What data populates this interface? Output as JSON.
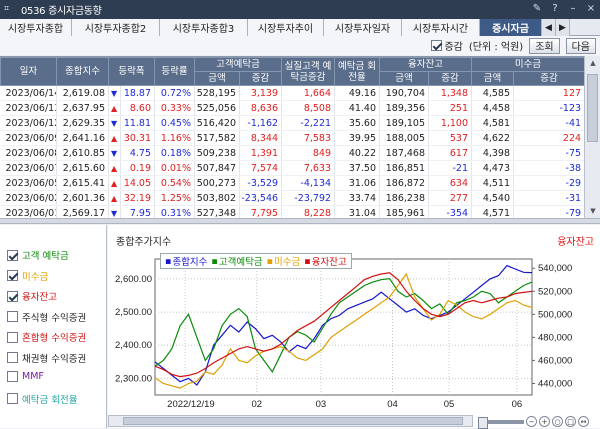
{
  "window": {
    "title": "0536 증시자금동향"
  },
  "tabs": [
    "시장투자종합",
    "시장투자종합2",
    "시장투자종합3",
    "시장투자추이",
    "시장투자일자",
    "시장투자시간",
    "증시자금"
  ],
  "active_tab": "증시자금",
  "options": {
    "check_label": "증감",
    "check_on": true,
    "unit": "(단위 : 억원)",
    "query_btn": "조회",
    "next_btn": "다음"
  },
  "table": {
    "top_headers": [
      "일자",
      "종합지수",
      "등락폭",
      "등락률",
      "고객예탁금",
      "실질고객 예탁금증감",
      "예탁금 회전율",
      "융자잔고",
      "미수금"
    ],
    "sub_headers": [
      "금액",
      "증감",
      "금액",
      "증감",
      "금액",
      "증감"
    ],
    "rows": [
      [
        "2023/06/14",
        "2,619.08",
        "dn",
        "18.87",
        "0.72%",
        "528,195",
        "3,139",
        "1,664",
        "49.16",
        "190,704",
        "1,348",
        "4,585",
        "127"
      ],
      [
        "2023/06/13",
        "2,637.95",
        "up",
        "8.60",
        "0.33%",
        "525,056",
        "8,636",
        "8,508",
        "41.40",
        "189,356",
        "251",
        "4,458",
        "-123"
      ],
      [
        "2023/06/12",
        "2,629.35",
        "dn",
        "11.81",
        "0.45%",
        "516,420",
        "-1,162",
        "-2,221",
        "35.60",
        "189,105",
        "1,100",
        "4,581",
        "-41"
      ],
      [
        "2023/06/09",
        "2,641.16",
        "up",
        "30.31",
        "1.16%",
        "517,582",
        "8,344",
        "7,583",
        "39.95",
        "188,005",
        "537",
        "4,622",
        "224"
      ],
      [
        "2023/06/08",
        "2,610.85",
        "dn",
        "4.75",
        "0.18%",
        "509,238",
        "1,391",
        "849",
        "40.22",
        "187,468",
        "617",
        "4,398",
        "-75"
      ],
      [
        "2023/06/07",
        "2,615.60",
        "up",
        "0.19",
        "0.01%",
        "507,847",
        "7,574",
        "7,633",
        "37.50",
        "186,851",
        "-21",
        "4,473",
        "-38"
      ],
      [
        "2023/06/05",
        "2,615.41",
        "up",
        "14.05",
        "0.54%",
        "500,273",
        "-3,529",
        "-4,134",
        "31.06",
        "186,872",
        "634",
        "4,511",
        "-29"
      ],
      [
        "2023/06/02",
        "2,601.36",
        "up",
        "32.19",
        "1.25%",
        "503,802",
        "-23,546",
        "-23,792",
        "33.74",
        "186,238",
        "277",
        "4,540",
        "-31"
      ],
      [
        "2023/06/01",
        "2,569.17",
        "dn",
        "7.95",
        "0.31%",
        "527,348",
        "7,795",
        "8,228",
        "31.04",
        "185,961",
        "-354",
        "4,571",
        "-79"
      ]
    ]
  },
  "legend_panel": [
    {
      "label": "고객 예탁금",
      "checked": true,
      "color": "#0a8a0a"
    },
    {
      "label": "미수금",
      "checked": true,
      "color": "#e0a000"
    },
    {
      "label": "융자잔고",
      "checked": true,
      "color": "#d01010"
    },
    {
      "label": "주식형 수익증권",
      "checked": false,
      "color": "#222222"
    },
    {
      "label": "혼합형 수익증권",
      "checked": false,
      "color": "#d01010"
    },
    {
      "label": "채권형 수익증권",
      "checked": false,
      "color": "#222222"
    },
    {
      "label": "MMF",
      "checked": false,
      "color": "#7a1aa0"
    },
    {
      "label": "예탁금 회전율",
      "checked": false,
      "color": "#23a6a0"
    }
  ],
  "chart": {
    "title": "종합주가지수",
    "right_label": "융자잔고",
    "legend": [
      {
        "label": "종합지수",
        "color": "#1515d0"
      },
      {
        "label": "고객예탁금",
        "color": "#0a8a0a"
      },
      {
        "label": "미수금",
        "color": "#e0a000"
      },
      {
        "label": "융자잔고",
        "color": "#d01010"
      }
    ]
  },
  "chart_data": {
    "type": "line",
    "x_labels": [
      "2022/12/19",
      "02",
      "03",
      "04",
      "05",
      "06"
    ],
    "left_axis": {
      "ticks": [
        "2,300.00",
        "2,400.00",
        "2,500.00",
        "2,600.00"
      ],
      "range": [
        2250,
        2660
      ]
    },
    "right_axis": {
      "ticks": [
        "440,000",
        "460,000",
        "480,000",
        "500,000",
        "520,000",
        "540,000"
      ],
      "range": [
        430000,
        548000
      ]
    },
    "series": [
      {
        "name": "종합지수",
        "color": "#1515d0",
        "axis": "left",
        "values": [
          2350,
          2330,
          2310,
          2290,
          2300,
          2280,
          2320,
          2400,
          2430,
          2460,
          2440,
          2470,
          2450,
          2420,
          2430,
          2410,
          2380,
          2400,
          2390,
          2420,
          2460,
          2480,
          2490,
          2510,
          2520,
          2530,
          2540,
          2560,
          2540,
          2520,
          2500,
          2510,
          2490,
          2480,
          2490,
          2500,
          2520,
          2540,
          2560,
          2580,
          2600,
          2610,
          2640,
          2630,
          2620,
          2619
        ]
      },
      {
        "name": "고객예탁금",
        "color": "#0a8a0a",
        "axis": "right",
        "values": [
          455000,
          460000,
          470000,
          490000,
          500000,
          480000,
          460000,
          470000,
          490000,
          500000,
          505000,
          498000,
          470000,
          460000,
          450000,
          465000,
          480000,
          485000,
          482000,
          476000,
          488000,
          500000,
          510000,
          515000,
          520000,
          525000,
          528000,
          530000,
          531000,
          520000,
          515000,
          518000,
          512000,
          505000,
          509000,
          500000,
          510000,
          512000,
          515000,
          520000,
          518000,
          510000,
          515000,
          520000,
          525000,
          528000
        ]
      },
      {
        "name": "미수금",
        "color": "#e0a000",
        "axis": "right",
        "values": [
          445000,
          440000,
          438000,
          436000,
          440000,
          442000,
          450000,
          448000,
          456000,
          470000,
          460000,
          458000,
          464000,
          468000,
          470000,
          472000,
          468000,
          462000,
          460000,
          465000,
          470000,
          480000,
          485000,
          490000,
          495000,
          500000,
          505000,
          510000,
          515000,
          525000,
          535000,
          515000,
          505000,
          495000,
          500000,
          512000,
          508000,
          502000,
          498000,
          496000,
          500000,
          505000,
          510000,
          512000,
          508000,
          506000
        ]
      },
      {
        "name": "융자잔고",
        "color": "#d01010",
        "axis": "right",
        "values": [
          455000,
          452000,
          448000,
          446000,
          447000,
          449000,
          453000,
          458000,
          462000,
          466000,
          470000,
          472000,
          470000,
          468000,
          470000,
          474000,
          480000,
          486000,
          490000,
          494000,
          500000,
          506000,
          512000,
          518000,
          524000,
          530000,
          533000,
          535000,
          536000,
          530000,
          520000,
          512000,
          505000,
          500000,
          498000,
          500000,
          505000,
          510000,
          512000,
          510000,
          512000,
          514000,
          515000,
          518000,
          519000,
          520000
        ]
      }
    ]
  }
}
